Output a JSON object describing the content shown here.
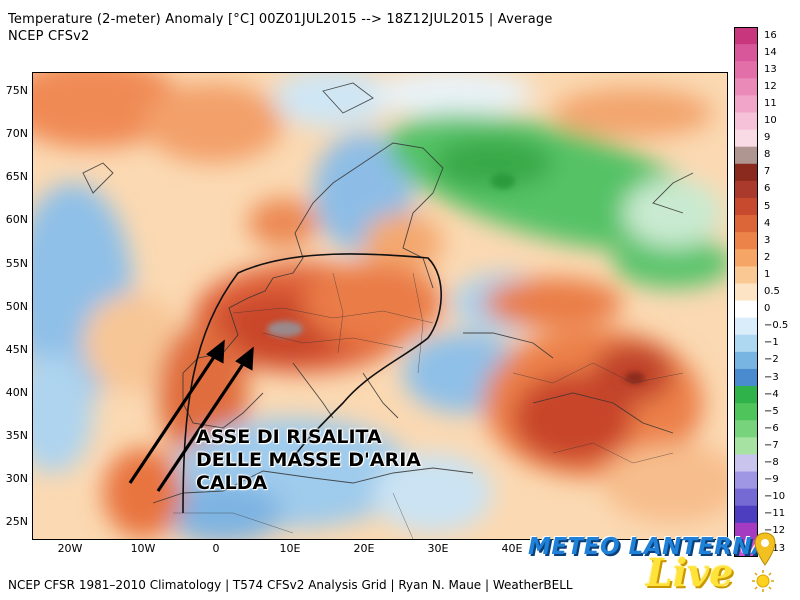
{
  "header": {
    "title": "Temperature (2-meter) Anomaly  [°C] 00Z01JUL2015 --> 18Z12JUL2015 | Average",
    "subtitle": "NCEP CFSv2"
  },
  "footer": {
    "text": "NCEP CFSR 1981–2010 Climatology | T574 CFSv2 Analysis Grid | Ryan N. Maue | WeatherBELL"
  },
  "axes": {
    "lat_labels": [
      "75N",
      "70N",
      "65N",
      "60N",
      "55N",
      "50N",
      "45N",
      "40N",
      "35N",
      "30N",
      "25N"
    ],
    "lon_labels": [
      "20W",
      "10W",
      "0",
      "10E",
      "20E",
      "30E",
      "40E"
    ]
  },
  "colorbar": {
    "labels": [
      "16",
      "14",
      "13",
      "12",
      "11",
      "10",
      "9",
      "8",
      "7",
      "6",
      "5",
      "4",
      "3",
      "2",
      "1",
      "0.5",
      "0",
      "−0.5",
      "−1",
      "−2",
      "−3",
      "−4",
      "−5",
      "−6",
      "−7",
      "−8",
      "−9",
      "−10",
      "−11",
      "−12",
      "−13"
    ],
    "colors": [
      "#c8377d",
      "#d8569a",
      "#e26fa8",
      "#ea8ab8",
      "#f1a5c8",
      "#f6c2d9",
      "#f9dbe6",
      "#b09691",
      "#8a2a1f",
      "#a93a2c",
      "#c74a2f",
      "#dd6638",
      "#ec8449",
      "#f5a565",
      "#f9c893",
      "#fde4c4",
      "#ffffff",
      "#d9eefa",
      "#aed8f1",
      "#78b5e3",
      "#4a8bd0",
      "#2fb24a",
      "#4ec45b",
      "#77d47c",
      "#a6e3a3",
      "#c8c4ee",
      "#9f97e3",
      "#7569d4",
      "#4d3dbf",
      "#a53bc0",
      "#d34fd1"
    ]
  },
  "annotation": {
    "lines": [
      "ASSE DI RISALITA",
      "DELLE MASSE D'ARIA",
      "CALDA"
    ]
  },
  "logo": {
    "name": "METEO LANTERNA",
    "tagline": "Live"
  }
}
